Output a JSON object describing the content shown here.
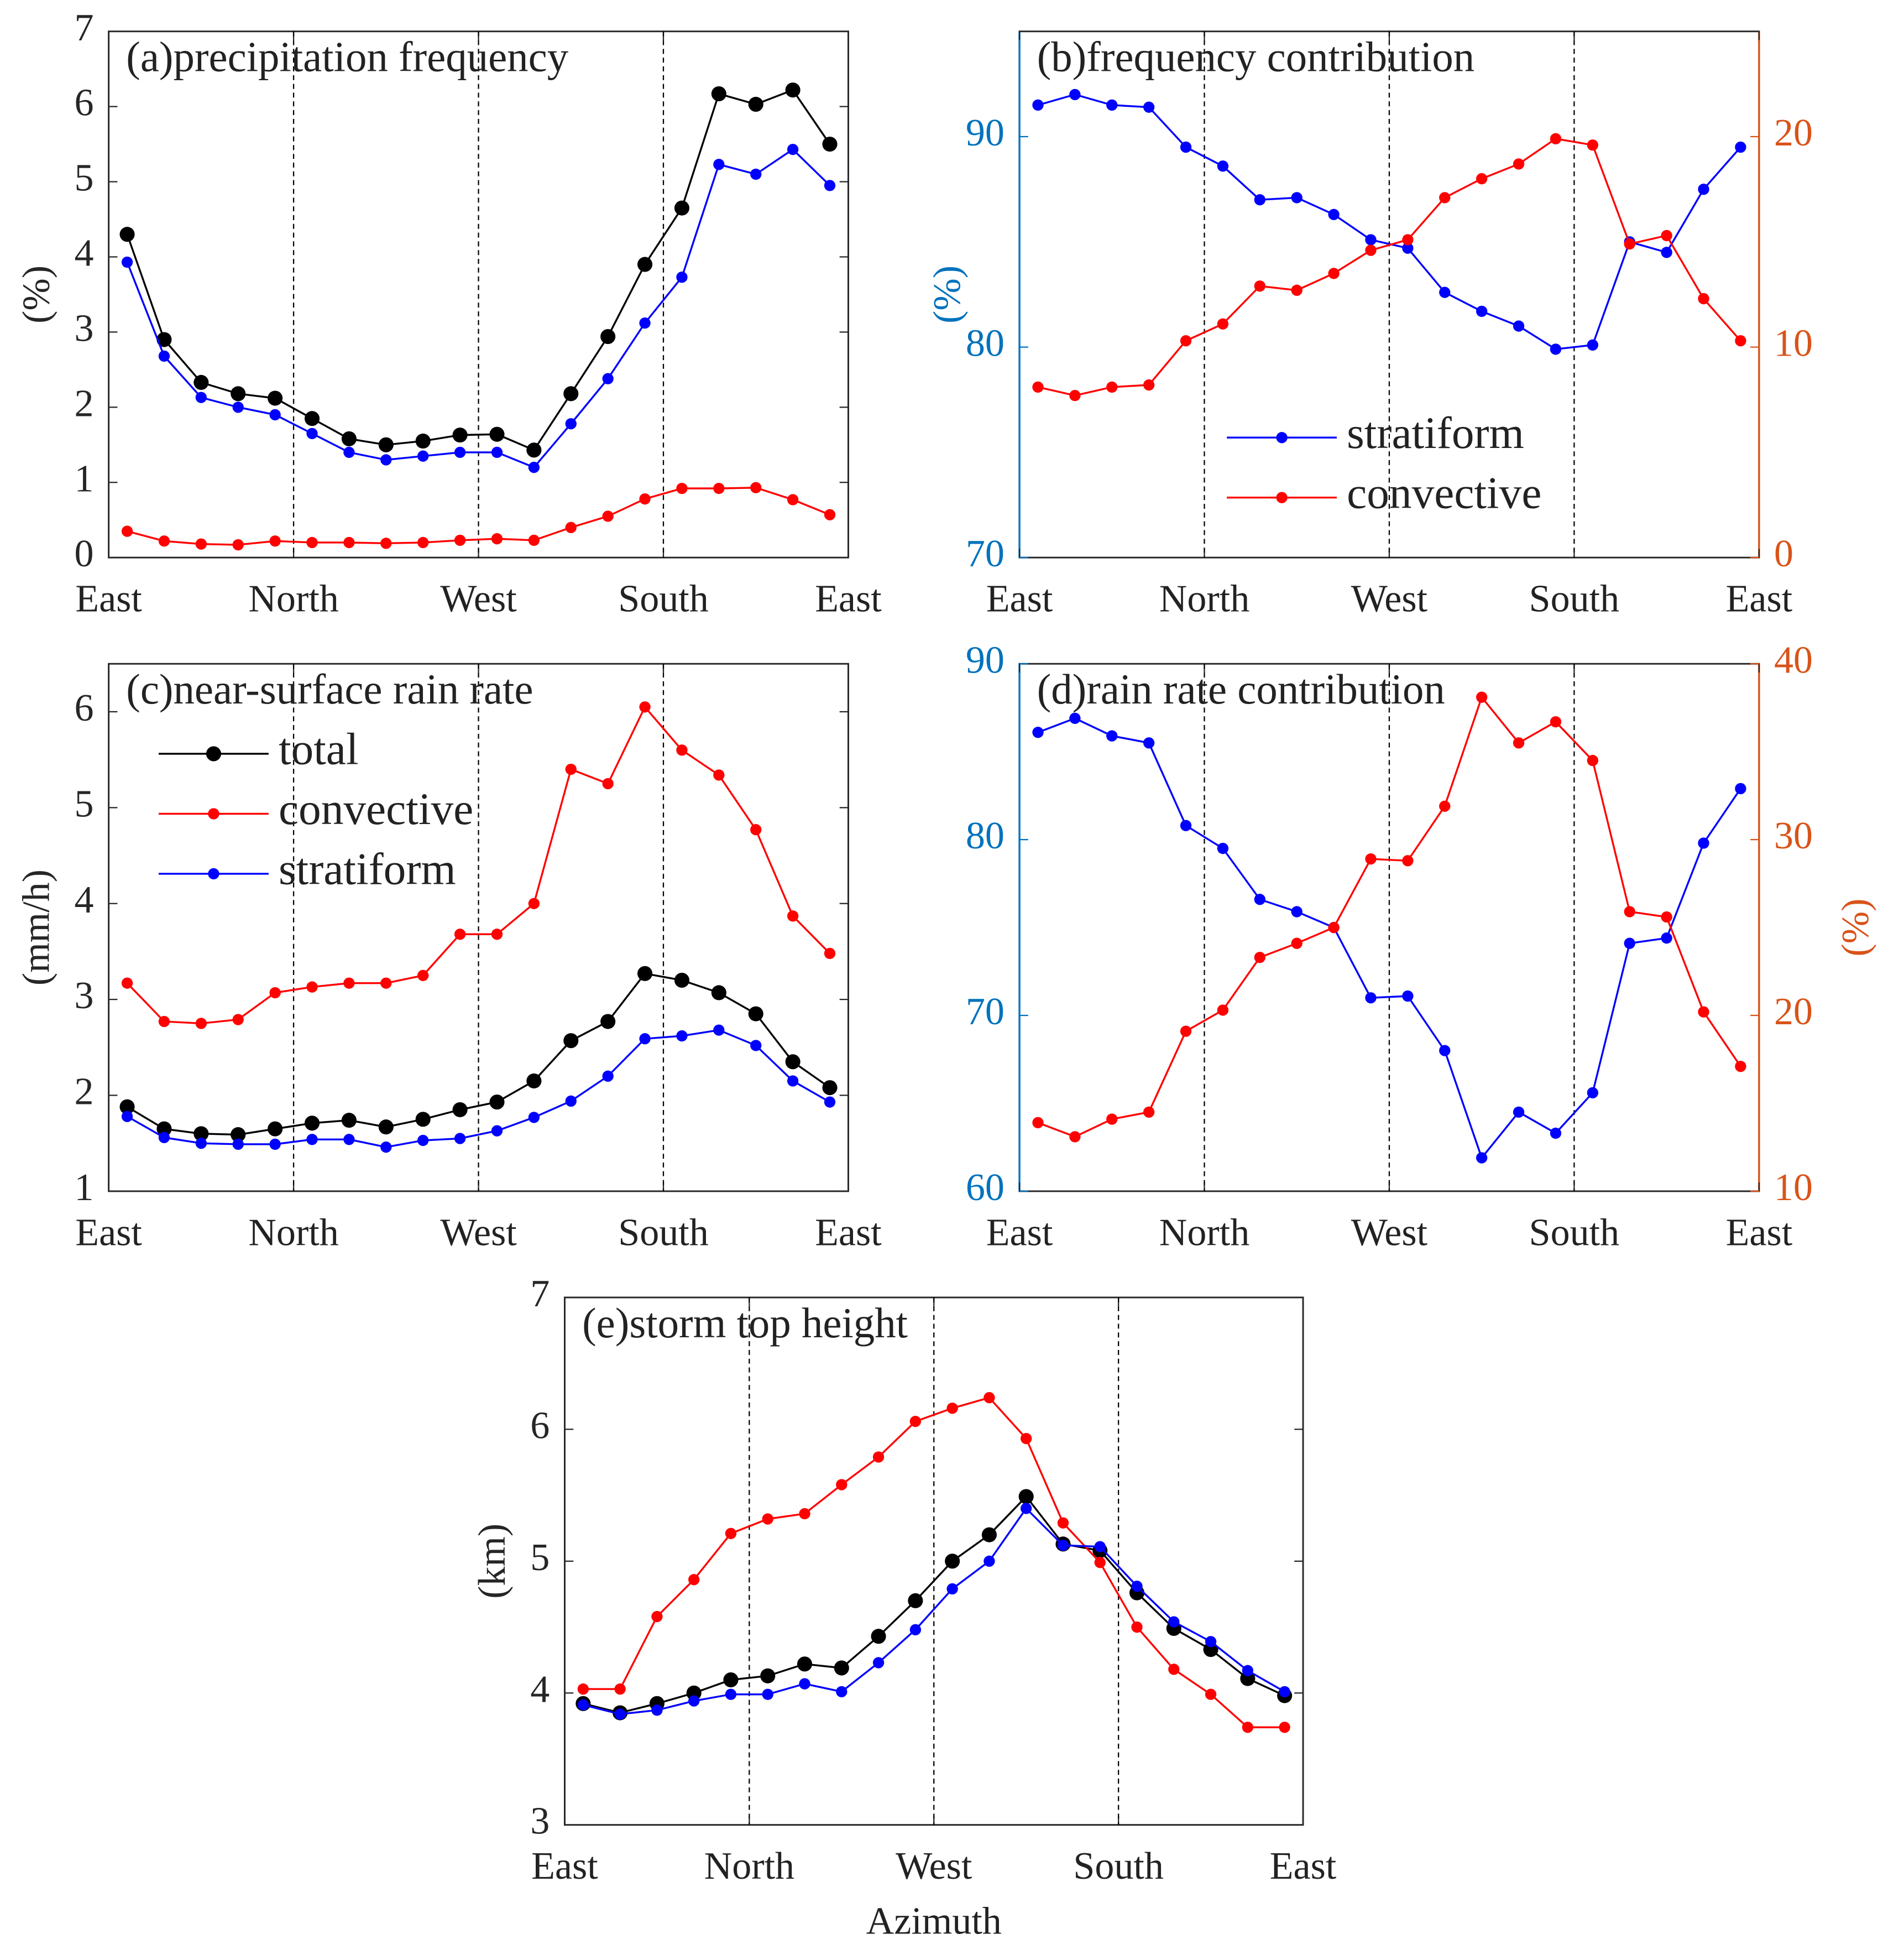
{
  "chart_data": [
    {
      "type": "line",
      "title": "(a)precipitation frequency",
      "x": [
        9,
        27,
        45,
        63,
        81,
        99,
        117,
        135,
        153,
        171,
        189,
        207,
        225,
        243,
        261,
        279,
        297,
        315,
        333,
        351
      ],
      "xlim": [
        0,
        360
      ],
      "xticks": [
        {
          "value": 0,
          "label": "East"
        },
        {
          "value": 90,
          "label": "North"
        },
        {
          "value": 180,
          "label": "West"
        },
        {
          "value": 270,
          "label": "South"
        },
        {
          "value": 360,
          "label": "East"
        }
      ],
      "ylim": [
        0,
        7
      ],
      "yticks": [
        0,
        1,
        2,
        3,
        4,
        5,
        6,
        7
      ],
      "ylabel": "(%)",
      "grid": true,
      "series": [
        {
          "color": "#000000",
          "values": [
            4.3,
            2.9,
            2.33,
            2.18,
            2.12,
            1.85,
            1.58,
            1.5,
            1.55,
            1.63,
            1.64,
            1.43,
            2.18,
            2.94,
            3.9,
            4.65,
            6.17,
            6.03,
            6.22,
            5.5
          ]
        },
        {
          "color": "#0000ff",
          "values": [
            3.93,
            2.68,
            2.13,
            2.0,
            1.9,
            1.65,
            1.4,
            1.3,
            1.35,
            1.4,
            1.4,
            1.2,
            1.78,
            2.38,
            3.12,
            3.73,
            5.23,
            5.1,
            5.43,
            4.95
          ]
        },
        {
          "color": "#ff0000",
          "values": [
            0.35,
            0.22,
            0.18,
            0.17,
            0.22,
            0.2,
            0.2,
            0.19,
            0.2,
            0.23,
            0.25,
            0.23,
            0.4,
            0.55,
            0.78,
            0.92,
            0.92,
            0.93,
            0.77,
            0.57
          ]
        }
      ]
    },
    {
      "type": "line",
      "title": "(b)frequency contribution",
      "x": [
        9,
        27,
        45,
        63,
        81,
        99,
        117,
        135,
        153,
        171,
        189,
        207,
        225,
        243,
        261,
        279,
        297,
        315,
        333,
        351
      ],
      "xlim": [
        0,
        360
      ],
      "xticks": [
        {
          "value": 0,
          "label": "East"
        },
        {
          "value": 90,
          "label": "North"
        },
        {
          "value": 180,
          "label": "West"
        },
        {
          "value": 270,
          "label": "South"
        },
        {
          "value": 360,
          "label": "East"
        }
      ],
      "ylim": [
        70,
        95
      ],
      "yticks": [
        70,
        80,
        90
      ],
      "ylabel": "(%)",
      "y_color": "#0072bd",
      "y2lim": [
        0,
        25
      ],
      "y2ticks": [
        0,
        10,
        20
      ],
      "y2_color": "#d95319",
      "grid": true,
      "legend": "lower center",
      "series": [
        {
          "name": "stratiform",
          "color": "#0000ff",
          "values": [
            91.5,
            92,
            91.5,
            91.4,
            89.5,
            88.6,
            87,
            87.1,
            86.3,
            85.1,
            84.7,
            82.6,
            81.7,
            81,
            79.9,
            80.1,
            85,
            84.5,
            87.5,
            89.5
          ]
        },
        {
          "name": "convective",
          "color": "#ff0000",
          "axis": "y2",
          "values": [
            8.1,
            7.7,
            8.1,
            8.2,
            10.3,
            11.1,
            12.9,
            12.7,
            13.5,
            14.6,
            15.1,
            17.1,
            18.0,
            18.7,
            19.9,
            19.6,
            14.9,
            15.3,
            12.3,
            10.3
          ]
        }
      ]
    },
    {
      "type": "line",
      "title": "(c)near-surface rain rate",
      "x": [
        9,
        27,
        45,
        63,
        81,
        99,
        117,
        135,
        153,
        171,
        189,
        207,
        225,
        243,
        261,
        279,
        297,
        315,
        333,
        351
      ],
      "xlim": [
        0,
        360
      ],
      "xticks": [
        {
          "value": 0,
          "label": "East"
        },
        {
          "value": 90,
          "label": "North"
        },
        {
          "value": 180,
          "label": "West"
        },
        {
          "value": 270,
          "label": "South"
        },
        {
          "value": 360,
          "label": "East"
        }
      ],
      "ylim": [
        1,
        6.5
      ],
      "yticks": [
        1,
        2,
        3,
        4,
        5,
        6
      ],
      "ylabel": "(mm/h)",
      "grid": true,
      "legend": "upper left",
      "series": [
        {
          "name": "total",
          "color": "#000000",
          "values": [
            1.88,
            1.65,
            1.6,
            1.59,
            1.65,
            1.71,
            1.74,
            1.67,
            1.75,
            1.85,
            1.93,
            2.15,
            2.57,
            2.77,
            3.27,
            3.2,
            3.07,
            2.85,
            2.35,
            2.08
          ]
        },
        {
          "name": "convective",
          "color": "#ff0000",
          "values": [
            3.17,
            2.77,
            2.75,
            2.79,
            3.07,
            3.13,
            3.17,
            3.17,
            3.25,
            3.68,
            3.68,
            4.0,
            5.4,
            5.25,
            6.05,
            5.6,
            5.34,
            4.77,
            3.87,
            3.48
          ]
        },
        {
          "name": "stratiform",
          "color": "#0000ff",
          "values": [
            1.78,
            1.56,
            1.5,
            1.49,
            1.49,
            1.54,
            1.54,
            1.46,
            1.53,
            1.55,
            1.63,
            1.77,
            1.94,
            2.2,
            2.59,
            2.62,
            2.68,
            2.52,
            2.15,
            1.93
          ]
        }
      ]
    },
    {
      "type": "line",
      "title": "(d)rain rate contribution",
      "x": [
        9,
        27,
        45,
        63,
        81,
        99,
        117,
        135,
        153,
        171,
        189,
        207,
        225,
        243,
        261,
        279,
        297,
        315,
        333,
        351
      ],
      "xlim": [
        0,
        360
      ],
      "xticks": [
        {
          "value": 0,
          "label": "East"
        },
        {
          "value": 90,
          "label": "North"
        },
        {
          "value": 180,
          "label": "West"
        },
        {
          "value": 270,
          "label": "South"
        },
        {
          "value": 360,
          "label": "East"
        }
      ],
      "ylim": [
        60,
        90
      ],
      "yticks": [
        60,
        70,
        80,
        90
      ],
      "y_color": "#0072bd",
      "y2lim": [
        10,
        40
      ],
      "y2ticks": [
        10,
        20,
        30,
        40
      ],
      "y2label": "(%)",
      "y2_color": "#d95319",
      "grid": true,
      "series": [
        {
          "color": "#0000ff",
          "values": [
            86.1,
            86.9,
            85.9,
            85.5,
            80.8,
            79.5,
            76.6,
            75.9,
            75,
            71,
            71.1,
            68,
            61.9,
            64.5,
            63.3,
            65.6,
            74.1,
            74.4,
            79.8,
            82.9
          ]
        },
        {
          "color": "#ff0000",
          "axis": "y2",
          "values": [
            13.9,
            13.1,
            14.1,
            14.5,
            19.1,
            20.3,
            23.3,
            24.1,
            25,
            28.9,
            28.8,
            31.9,
            38.1,
            35.5,
            36.7,
            34.5,
            25.9,
            25.6,
            20.2,
            17.1
          ]
        }
      ]
    },
    {
      "type": "line",
      "title": "(e)storm top height",
      "x": [
        9,
        27,
        45,
        63,
        81,
        99,
        117,
        135,
        153,
        171,
        189,
        207,
        225,
        243,
        261,
        279,
        297,
        315,
        333,
        351
      ],
      "xlim": [
        0,
        360
      ],
      "xticks": [
        {
          "value": 0,
          "label": "East"
        },
        {
          "value": 90,
          "label": "North"
        },
        {
          "value": 180,
          "label": "West"
        },
        {
          "value": 270,
          "label": "South"
        },
        {
          "value": 360,
          "label": "East"
        }
      ],
      "xlabel": "Azimuth",
      "ylim": [
        3,
        7
      ],
      "yticks": [
        3,
        4,
        5,
        6,
        7
      ],
      "ylabel": "(km)",
      "grid": true,
      "series": [
        {
          "color": "#000000",
          "values": [
            3.92,
            3.85,
            3.92,
            4.0,
            4.1,
            4.13,
            4.22,
            4.19,
            4.43,
            4.7,
            5.0,
            5.2,
            5.49,
            5.13,
            5.08,
            4.76,
            4.49,
            4.33,
            4.11,
            3.98
          ]
        },
        {
          "color": "#ff0000",
          "values": [
            4.03,
            4.03,
            4.58,
            4.86,
            5.21,
            5.32,
            5.36,
            5.58,
            5.79,
            6.06,
            6.16,
            6.24,
            5.93,
            5.29,
            4.99,
            4.5,
            4.18,
            3.99,
            3.74,
            3.74
          ]
        },
        {
          "color": "#0000ff",
          "values": [
            3.91,
            3.84,
            3.87,
            3.94,
            3.99,
            3.99,
            4.07,
            4.01,
            4.23,
            4.48,
            4.79,
            5.0,
            5.4,
            5.12,
            5.11,
            4.81,
            4.54,
            4.39,
            4.17,
            4.01
          ]
        }
      ]
    }
  ]
}
